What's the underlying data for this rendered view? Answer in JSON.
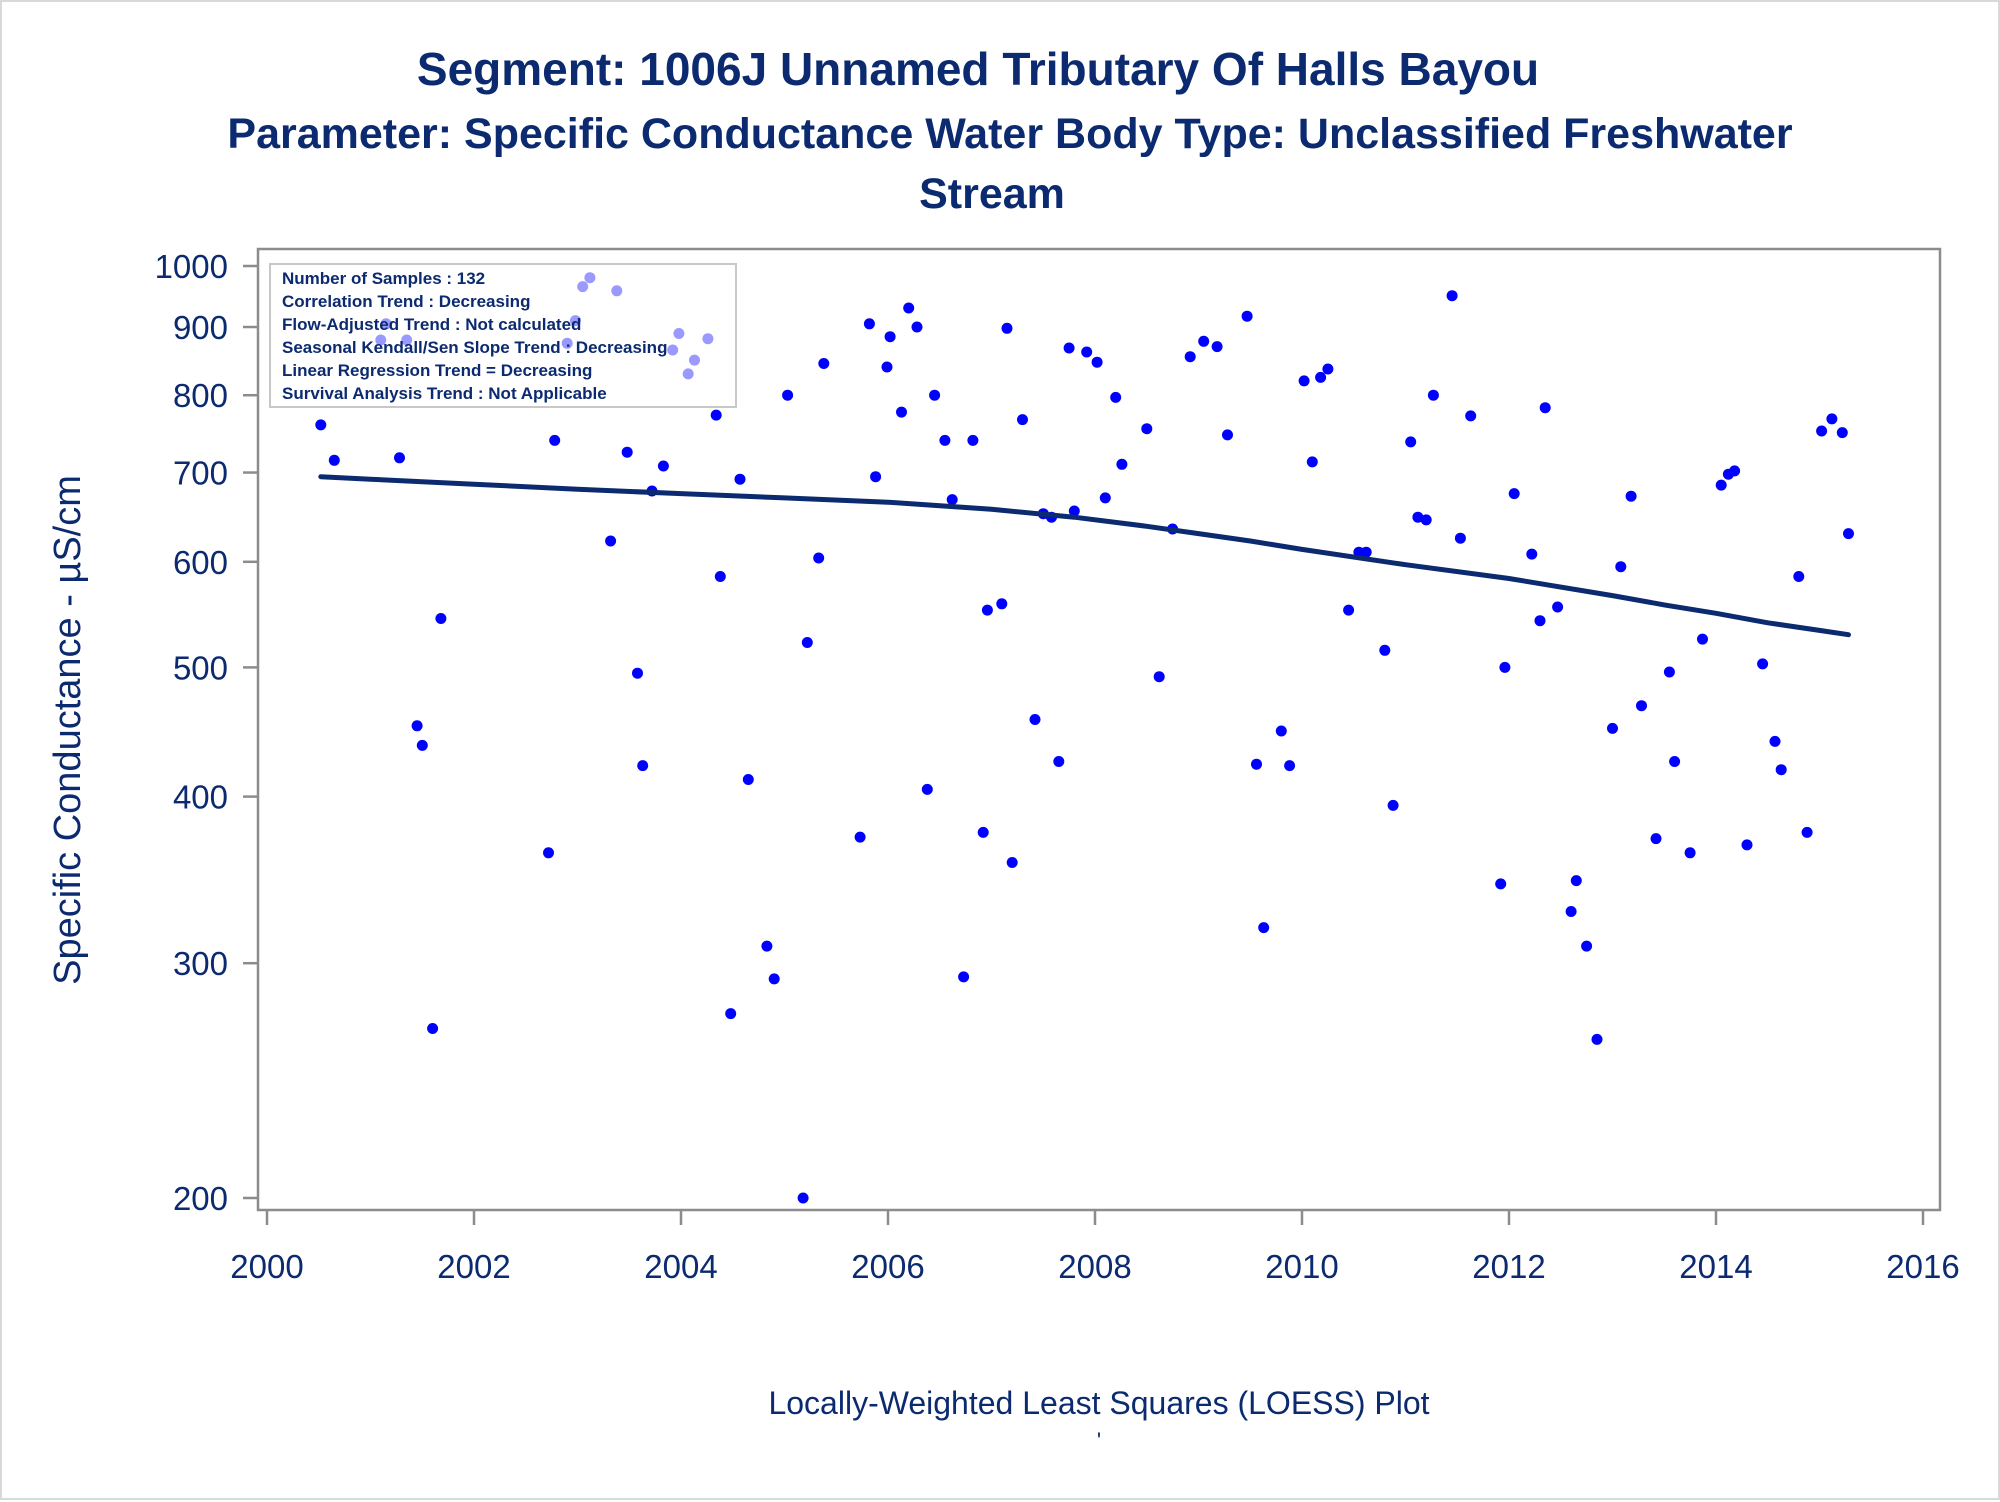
{
  "chart_data": {
    "type": "scatter",
    "title": "Segment: 1006J  Unnamed Tributary Of Halls Bayou",
    "subtitle_lines": [
      "Parameter: Specific Conductance   Water Body Type: Unclassified Freshwater",
      "Stream"
    ],
    "ylabel": "Specific Conductance -  µS/cm",
    "xlabel": "Locally-Weighted Least Squares (LOESS) Plot",
    "footnote": "'",
    "yscale": "log",
    "xlim": [
      2000,
      2016
    ],
    "ylim": [
      200,
      1000
    ],
    "x_ticks": [
      2000,
      2002,
      2004,
      2006,
      2008,
      2010,
      2012,
      2014,
      2016
    ],
    "y_ticks": [
      200,
      300,
      400,
      500,
      600,
      700,
      800,
      900,
      1000
    ],
    "grid": false,
    "legend_position": "top-left",
    "stats": [
      "Number of Samples : 132",
      "Correlation Trend : Decreasing",
      "Flow-Adjusted Trend : Not calculated",
      "Seasonal Kendall/Sen Slope Trend : Decreasing",
      "Linear Regression Trend = Decreasing",
      "Survival Analysis Trend : Not Applicable"
    ],
    "colors": {
      "points": "#0000ff",
      "trend": "#0b2a6f",
      "text": "#0b2a6f",
      "axis": "#8c8c8c"
    },
    "series": [
      {
        "type": "scatter",
        "points": [
          [
            2000.52,
            760
          ],
          [
            2000.65,
            715
          ],
          [
            2001.1,
            880
          ],
          [
            2001.15,
            905
          ],
          [
            2001.28,
            718
          ],
          [
            2001.35,
            880
          ],
          [
            2001.45,
            452
          ],
          [
            2001.5,
            437
          ],
          [
            2001.6,
            268
          ],
          [
            2001.68,
            544
          ],
          [
            2002.72,
            363
          ],
          [
            2002.78,
            740
          ],
          [
            2002.9,
            875
          ],
          [
            2002.98,
            910
          ],
          [
            2003.05,
            965
          ],
          [
            2003.12,
            980
          ],
          [
            2003.32,
            622
          ],
          [
            2003.38,
            958
          ],
          [
            2003.48,
            725
          ],
          [
            2003.58,
            495
          ],
          [
            2003.63,
            422
          ],
          [
            2003.72,
            678
          ],
          [
            2003.83,
            708
          ],
          [
            2003.92,
            865
          ],
          [
            2003.98,
            890
          ],
          [
            2004.07,
            830
          ],
          [
            2004.13,
            850
          ],
          [
            2004.26,
            882
          ],
          [
            2004.34,
            773
          ],
          [
            2004.38,
            585
          ],
          [
            2004.48,
            275
          ],
          [
            2004.57,
            692
          ],
          [
            2004.65,
            412
          ],
          [
            2004.83,
            309
          ],
          [
            2004.9,
            292
          ],
          [
            2005.03,
            800
          ],
          [
            2005.18,
            200
          ],
          [
            2005.22,
            522
          ],
          [
            2005.33,
            604
          ],
          [
            2005.38,
            845
          ],
          [
            2005.73,
            373
          ],
          [
            2005.82,
            905
          ],
          [
            2005.88,
            695
          ],
          [
            2005.99,
            840
          ],
          [
            2006.02,
            885
          ],
          [
            2006.13,
            777
          ],
          [
            2006.2,
            930
          ],
          [
            2006.28,
            900
          ],
          [
            2006.38,
            405
          ],
          [
            2006.45,
            800
          ],
          [
            2006.55,
            740
          ],
          [
            2006.62,
            668
          ],
          [
            2006.73,
            293
          ],
          [
            2006.82,
            740
          ],
          [
            2006.92,
            376
          ],
          [
            2006.96,
            552
          ],
          [
            2007.1,
            558
          ],
          [
            2007.15,
            898
          ],
          [
            2007.2,
            357
          ],
          [
            2007.3,
            767
          ],
          [
            2007.42,
            457
          ],
          [
            2007.5,
            652
          ],
          [
            2007.58,
            648
          ],
          [
            2007.65,
            425
          ],
          [
            2007.75,
            868
          ],
          [
            2007.8,
            655
          ],
          [
            2007.92,
            862
          ],
          [
            2008.02,
            847
          ],
          [
            2008.1,
            670
          ],
          [
            2008.2,
            797
          ],
          [
            2008.26,
            710
          ],
          [
            2008.5,
            755
          ],
          [
            2008.62,
            492
          ],
          [
            2008.75,
            635
          ],
          [
            2008.92,
            855
          ],
          [
            2009.05,
            878
          ],
          [
            2009.18,
            870
          ],
          [
            2009.28,
            747
          ],
          [
            2009.47,
            917
          ],
          [
            2009.56,
            423
          ],
          [
            2009.63,
            319
          ],
          [
            2009.8,
            448
          ],
          [
            2009.88,
            422
          ],
          [
            2010.02,
            820
          ],
          [
            2010.1,
            713
          ],
          [
            2010.18,
            825
          ],
          [
            2010.25,
            837
          ],
          [
            2010.45,
            552
          ],
          [
            2010.55,
            610
          ],
          [
            2010.62,
            610
          ],
          [
            2010.8,
            515
          ],
          [
            2010.88,
            394
          ],
          [
            2011.05,
            738
          ],
          [
            2011.12,
            648
          ],
          [
            2011.2,
            645
          ],
          [
            2011.27,
            800
          ],
          [
            2011.45,
            950
          ],
          [
            2011.53,
            625
          ],
          [
            2011.63,
            772
          ],
          [
            2011.92,
            344
          ],
          [
            2011.96,
            500
          ],
          [
            2012.05,
            675
          ],
          [
            2012.22,
            608
          ],
          [
            2012.3,
            542
          ],
          [
            2012.35,
            783
          ],
          [
            2012.47,
            555
          ],
          [
            2012.6,
            328
          ],
          [
            2012.65,
            346
          ],
          [
            2012.75,
            309
          ],
          [
            2012.85,
            263
          ],
          [
            2013.0,
            450
          ],
          [
            2013.08,
            595
          ],
          [
            2013.18,
            672
          ],
          [
            2013.28,
            468
          ],
          [
            2013.42,
            372
          ],
          [
            2013.55,
            496
          ],
          [
            2013.6,
            425
          ],
          [
            2013.75,
            363
          ],
          [
            2013.87,
            525
          ],
          [
            2014.05,
            685
          ],
          [
            2014.12,
            698
          ],
          [
            2014.18,
            702
          ],
          [
            2014.3,
            368
          ],
          [
            2014.45,
            503
          ],
          [
            2014.57,
            440
          ],
          [
            2014.63,
            419
          ],
          [
            2014.8,
            585
          ],
          [
            2014.88,
            376
          ],
          [
            2015.02,
            752
          ],
          [
            2015.12,
            768
          ],
          [
            2015.22,
            750
          ],
          [
            2015.28,
            630
          ]
        ]
      },
      {
        "name": "LOESS",
        "type": "line",
        "points": [
          [
            2000.52,
            695
          ],
          [
            2001.0,
            692
          ],
          [
            2002.0,
            686
          ],
          [
            2003.0,
            680
          ],
          [
            2004.0,
            675
          ],
          [
            2005.0,
            670
          ],
          [
            2006.0,
            665
          ],
          [
            2007.0,
            657
          ],
          [
            2007.8,
            648
          ],
          [
            2008.5,
            638
          ],
          [
            2009.0,
            630
          ],
          [
            2009.5,
            622
          ],
          [
            2010.0,
            613
          ],
          [
            2011.0,
            597
          ],
          [
            2012.0,
            583
          ],
          [
            2013.0,
            566
          ],
          [
            2013.5,
            557
          ],
          [
            2014.0,
            549
          ],
          [
            2014.5,
            540
          ],
          [
            2015.0,
            533
          ],
          [
            2015.28,
            529
          ]
        ]
      }
    ]
  }
}
